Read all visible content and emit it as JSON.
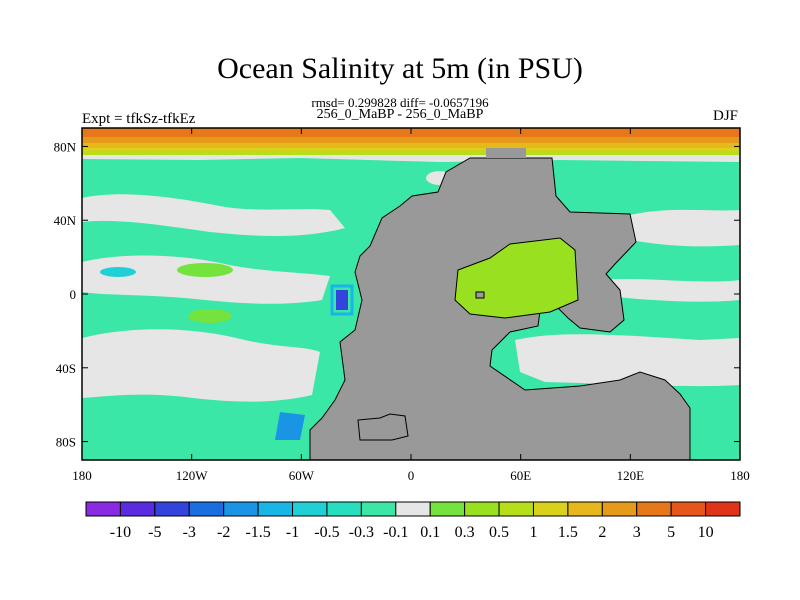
{
  "title": "Ocean Salinity at 5m (in PSU)",
  "stats": "rmsd= 0.299828 diff= -0.0657196",
  "subtitle": "256_0_MaBP - 256_0_MaBP",
  "left_tag": "Expt = tfkSz-tfkEz",
  "right_tag": "DJF",
  "x_ticks": [
    {
      "value": -180,
      "label": "180"
    },
    {
      "value": -120,
      "label": "120W"
    },
    {
      "value": -60,
      "label": "60W"
    },
    {
      "value": 0,
      "label": "0"
    },
    {
      "value": 60,
      "label": "60E"
    },
    {
      "value": 120,
      "label": "120E"
    },
    {
      "value": 180,
      "label": "180"
    }
  ],
  "y_ticks": [
    {
      "value": 80,
      "label": "80N"
    },
    {
      "value": 40,
      "label": "40N"
    },
    {
      "value": 0,
      "label": "0"
    },
    {
      "value": -40,
      "label": "40S"
    },
    {
      "value": -80,
      "label": "80S"
    }
  ],
  "extent": {
    "lon": [
      -180,
      180
    ],
    "lat": [
      -90,
      90
    ]
  },
  "colorbar": {
    "labels": [
      "-10",
      "-5",
      "-3",
      "-2",
      "-1.5",
      "-1",
      "-0.5",
      "-0.3",
      "-0.1",
      "0.1",
      "0.3",
      "0.5",
      "1",
      "1.5",
      "2",
      "3",
      "5",
      "10"
    ],
    "colors": [
      "#8a2be2",
      "#5a2be0",
      "#3344dd",
      "#1a6ee0",
      "#1a95e6",
      "#17b6e6",
      "#21cfd6",
      "#27dfbf",
      "#3be7a6",
      "#e6e6e6",
      "#74e33d",
      "#98e020",
      "#b7df19",
      "#d9d21a",
      "#e6b81c",
      "#e69a1a",
      "#e6781a",
      "#e6561a",
      "#e0341a"
    ]
  },
  "colors": {
    "land": "#999999",
    "ocean_base": "#3be7a6",
    "neutral": "#e6e6e6"
  }
}
